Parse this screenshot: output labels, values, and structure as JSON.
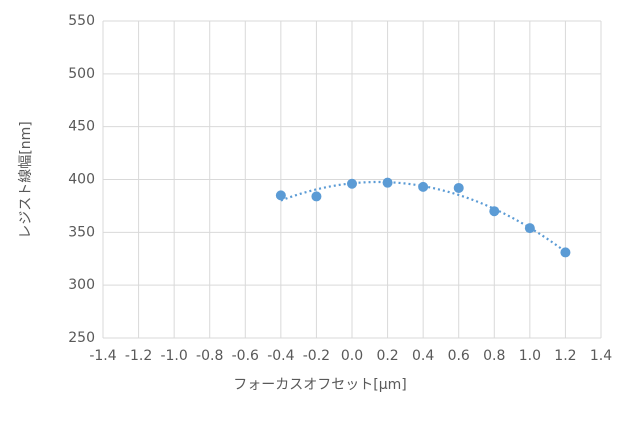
{
  "chart_data": {
    "type": "scatter",
    "x_label": "フォーカスオフセット[μm]",
    "y_label": "レジスト線幅[nm]",
    "series": [
      {
        "color": "#5b9bd5",
        "x": [
          -0.4,
          -0.2,
          0,
          0.2,
          0.4,
          0.6,
          0.8,
          1.0,
          1.2
        ],
        "values": [
          385,
          384,
          396,
          397,
          393,
          392,
          370,
          354,
          331
        ]
      }
    ],
    "trendline": {
      "kind": "polynomial",
      "order": 2,
      "style": "dotted"
    },
    "xlim": [
      -1.4,
      1.4
    ],
    "xticks": [
      -1.4,
      -1.2,
      {
        "value": -1.0,
        "label": "-1.0"
      },
      -0.8,
      -0.6,
      -0.4,
      -0.2,
      {
        "value": 0,
        "label": "0.0"
      },
      0.2,
      0.4,
      0.6,
      0.8,
      {
        "value": 1.0,
        "label": "1.0"
      },
      1.2,
      1.4
    ],
    "ylim": [
      250,
      550
    ],
    "yticks": [
      250,
      300,
      350,
      400,
      450,
      500,
      550
    ],
    "grid": true
  }
}
